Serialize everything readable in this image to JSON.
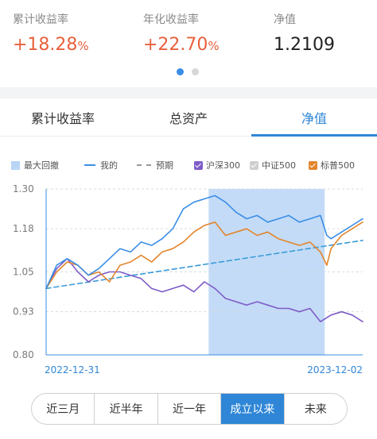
{
  "stats": [
    {
      "label": "累计收益率",
      "value": "+18.28",
      "unit": "%"
    },
    {
      "label": "年化收益率",
      "value": "+22.70",
      "unit": "%"
    },
    {
      "label": "净值",
      "value": "1.2109",
      "unit": ""
    }
  ],
  "tabs": [
    "累计收益率",
    "总资产",
    "净值"
  ],
  "legend": {
    "drawdown": "最大回撤",
    "mine": "我的",
    "forecast": "预期",
    "hs300": "沪深300",
    "zz500": "中证500",
    "sp500": "标普500"
  },
  "colors": {
    "accent": "#2f86d6",
    "mine": "#3a8ee6",
    "hs300": "#7e5cc8",
    "sp500": "#e3852b",
    "forecast": "#3a9bd8",
    "drawdown": "#b9d5f6",
    "gain": "#e8603c"
  },
  "chart_data": {
    "type": "line",
    "title": "",
    "x_start_label": "2022-12-31",
    "x_end_label": "2023-12-02",
    "ylim": [
      0.8,
      1.3
    ],
    "yticks": [
      "1.30",
      "1.18",
      "1.05",
      "0.93",
      "0.80"
    ],
    "drawdown_region": {
      "from_x": 0.77,
      "to_x": 1.32
    },
    "series": [
      {
        "name": "我的",
        "key": "mine",
        "style": "solid",
        "x": [
          0,
          0.05,
          0.1,
          0.15,
          0.2,
          0.25,
          0.3,
          0.35,
          0.4,
          0.45,
          0.5,
          0.55,
          0.6,
          0.65,
          0.7,
          0.75,
          0.8,
          0.85,
          0.9,
          0.95,
          1.0,
          1.05,
          1.1,
          1.15,
          1.2,
          1.25,
          1.3,
          1.33,
          1.35,
          1.4,
          1.45,
          1.5
        ],
        "values": [
          1.0,
          1.07,
          1.09,
          1.07,
          1.04,
          1.06,
          1.09,
          1.12,
          1.11,
          1.14,
          1.13,
          1.15,
          1.18,
          1.24,
          1.26,
          1.27,
          1.28,
          1.26,
          1.23,
          1.21,
          1.22,
          1.2,
          1.21,
          1.22,
          1.2,
          1.21,
          1.22,
          1.16,
          1.15,
          1.17,
          1.19,
          1.21
        ]
      },
      {
        "name": "预期",
        "key": "forecast",
        "style": "dashed",
        "x": [
          0,
          1.5
        ],
        "values": [
          1.0,
          1.145
        ]
      },
      {
        "name": "沪深300",
        "key": "hs300",
        "style": "solid",
        "x": [
          0,
          0.05,
          0.1,
          0.15,
          0.2,
          0.25,
          0.3,
          0.35,
          0.4,
          0.45,
          0.5,
          0.55,
          0.6,
          0.65,
          0.7,
          0.75,
          0.8,
          0.85,
          0.9,
          0.95,
          1.0,
          1.05,
          1.1,
          1.15,
          1.2,
          1.25,
          1.3,
          1.35,
          1.4,
          1.45,
          1.5
        ],
        "values": [
          1.0,
          1.06,
          1.09,
          1.05,
          1.02,
          1.04,
          1.05,
          1.05,
          1.04,
          1.03,
          1.0,
          0.99,
          1.0,
          1.01,
          0.99,
          1.02,
          1.0,
          0.97,
          0.96,
          0.95,
          0.96,
          0.95,
          0.94,
          0.94,
          0.93,
          0.94,
          0.9,
          0.92,
          0.93,
          0.92,
          0.9
        ]
      },
      {
        "name": "标普500",
        "key": "sp500",
        "style": "solid",
        "x": [
          0,
          0.05,
          0.1,
          0.15,
          0.2,
          0.25,
          0.3,
          0.35,
          0.4,
          0.45,
          0.5,
          0.55,
          0.6,
          0.65,
          0.7,
          0.75,
          0.8,
          0.85,
          0.9,
          0.95,
          1.0,
          1.05,
          1.1,
          1.15,
          1.2,
          1.25,
          1.3,
          1.33,
          1.35,
          1.4,
          1.45,
          1.5
        ],
        "values": [
          1.0,
          1.05,
          1.08,
          1.07,
          1.04,
          1.05,
          1.02,
          1.07,
          1.08,
          1.1,
          1.08,
          1.11,
          1.12,
          1.14,
          1.17,
          1.19,
          1.2,
          1.16,
          1.17,
          1.18,
          1.16,
          1.17,
          1.15,
          1.14,
          1.13,
          1.14,
          1.11,
          1.07,
          1.12,
          1.16,
          1.18,
          1.2
        ]
      }
    ]
  },
  "periods": [
    "近三月",
    "近半年",
    "近一年",
    "成立以来",
    "未来"
  ],
  "active_period": 3
}
